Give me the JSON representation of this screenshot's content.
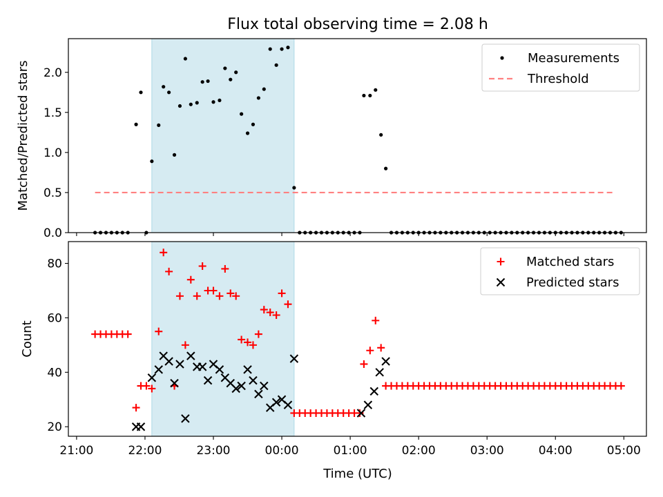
{
  "chart_data": {
    "type": "scatter",
    "title": "Flux total observing time = 2.08 h",
    "xlabel": "Time (UTC)",
    "x_unit": "hours since 21:00 UTC",
    "xlim": [
      -0.12,
      8.33
    ],
    "x_ticks": [
      {
        "value": 0,
        "label": "21:00"
      },
      {
        "value": 1,
        "label": "22:00"
      },
      {
        "value": 2,
        "label": "23:00"
      },
      {
        "value": 3,
        "label": "00:00"
      },
      {
        "value": 4,
        "label": "01:00"
      },
      {
        "value": 5,
        "label": "02:00"
      },
      {
        "value": 6,
        "label": "03:00"
      },
      {
        "value": 7,
        "label": "04:00"
      },
      {
        "value": 8,
        "label": "05:00"
      }
    ],
    "observing_window": {
      "start": 1.1,
      "end": 3.18,
      "color": "#add8e6"
    },
    "panels": [
      {
        "id": "ratio",
        "ylabel": "Matched/Predicted stars",
        "ylim": [
          0,
          2.42
        ],
        "y_ticks": [
          {
            "value": 0,
            "label": "0.0"
          },
          {
            "value": 0.5,
            "label": "0.5"
          },
          {
            "value": 1.0,
            "label": "1.0"
          },
          {
            "value": 1.5,
            "label": "1.5"
          },
          {
            "value": 2.0,
            "label": "2.0"
          }
        ],
        "legend": [
          "Measurements",
          "Threshold"
        ],
        "series": [
          {
            "name": "Measurements",
            "marker": "dot",
            "color": "#000000",
            "points": [
              [
                0.27,
                0
              ],
              [
                0.35,
                0
              ],
              [
                0.43,
                0
              ],
              [
                0.51,
                0
              ],
              [
                0.59,
                0
              ],
              [
                0.67,
                0
              ],
              [
                0.75,
                0
              ],
              [
                0.87,
                1.35
              ],
              [
                0.94,
                1.75
              ],
              [
                1.02,
                0
              ],
              [
                1.1,
                0.89
              ],
              [
                1.2,
                1.34
              ],
              [
                1.27,
                1.82
              ],
              [
                1.35,
                1.75
              ],
              [
                1.43,
                0.97
              ],
              [
                1.51,
                1.58
              ],
              [
                1.59,
                2.17
              ],
              [
                1.67,
                1.6
              ],
              [
                1.76,
                1.62
              ],
              [
                1.84,
                1.88
              ],
              [
                1.92,
                1.89
              ],
              [
                2.0,
                1.63
              ],
              [
                2.09,
                1.65
              ],
              [
                2.17,
                2.05
              ],
              [
                2.25,
                1.91
              ],
              [
                2.33,
                2.0
              ],
              [
                2.41,
                1.48
              ],
              [
                2.5,
                1.24
              ],
              [
                2.58,
                1.35
              ],
              [
                2.66,
                1.68
              ],
              [
                2.74,
                1.79
              ],
              [
                2.83,
                2.29
              ],
              [
                2.92,
                2.09
              ],
              [
                3.0,
                2.29
              ],
              [
                3.09,
                2.31
              ],
              [
                3.18,
                0.56
              ],
              [
                3.26,
                0
              ],
              [
                3.34,
                0
              ],
              [
                3.42,
                0
              ],
              [
                3.5,
                0
              ],
              [
                3.58,
                0
              ],
              [
                3.66,
                0
              ],
              [
                3.74,
                0
              ],
              [
                3.82,
                0
              ],
              [
                3.9,
                0
              ],
              [
                3.98,
                0
              ],
              [
                4.06,
                0
              ],
              [
                4.14,
                0
              ],
              [
                4.2,
                1.71
              ],
              [
                4.29,
                1.71
              ],
              [
                4.37,
                1.78
              ],
              [
                4.45,
                1.22
              ],
              [
                4.52,
                0.8
              ],
              [
                4.6,
                0
              ],
              [
                4.68,
                0
              ],
              [
                4.76,
                0
              ],
              [
                4.84,
                0
              ],
              [
                4.92,
                0
              ],
              [
                5.0,
                0
              ],
              [
                5.08,
                0
              ],
              [
                5.16,
                0
              ],
              [
                5.24,
                0
              ],
              [
                5.32,
                0
              ],
              [
                5.4,
                0
              ],
              [
                5.48,
                0
              ],
              [
                5.56,
                0
              ],
              [
                5.64,
                0
              ],
              [
                5.72,
                0
              ],
              [
                5.8,
                0
              ],
              [
                5.88,
                0
              ],
              [
                5.96,
                0
              ],
              [
                6.04,
                0
              ],
              [
                6.12,
                0
              ],
              [
                6.2,
                0
              ],
              [
                6.28,
                0
              ],
              [
                6.36,
                0
              ],
              [
                6.44,
                0
              ],
              [
                6.52,
                0
              ],
              [
                6.6,
                0
              ],
              [
                6.68,
                0
              ],
              [
                6.76,
                0
              ],
              [
                6.84,
                0
              ],
              [
                6.92,
                0
              ],
              [
                7.0,
                0
              ],
              [
                7.08,
                0
              ],
              [
                7.16,
                0
              ],
              [
                7.24,
                0
              ],
              [
                7.32,
                0
              ],
              [
                7.4,
                0
              ],
              [
                7.48,
                0
              ],
              [
                7.56,
                0
              ],
              [
                7.64,
                0
              ],
              [
                7.72,
                0
              ],
              [
                7.8,
                0
              ],
              [
                7.88,
                0
              ],
              [
                7.96,
                0
              ]
            ]
          },
          {
            "name": "Threshold",
            "marker": "dashed-line",
            "color": "#ff8080",
            "points": [
              [
                0.27,
                0.5
              ],
              [
                7.87,
                0.5
              ]
            ]
          }
        ]
      },
      {
        "id": "counts",
        "ylabel": "Count",
        "ylim": [
          16.5,
          88
        ],
        "y_ticks": [
          {
            "value": 20,
            "label": "20"
          },
          {
            "value": 40,
            "label": "40"
          },
          {
            "value": 60,
            "label": "60"
          },
          {
            "value": 80,
            "label": "80"
          }
        ],
        "legend": [
          "Matched stars",
          "Predicted stars"
        ],
        "series": [
          {
            "name": "Matched stars",
            "marker": "plus",
            "color": "#ff0000",
            "points": [
              [
                0.27,
                54
              ],
              [
                0.35,
                54
              ],
              [
                0.43,
                54
              ],
              [
                0.51,
                54
              ],
              [
                0.59,
                54
              ],
              [
                0.67,
                54
              ],
              [
                0.75,
                54
              ],
              [
                0.87,
                27
              ],
              [
                0.94,
                35
              ],
              [
                1.02,
                35
              ],
              [
                1.1,
                34
              ],
              [
                1.2,
                55
              ],
              [
                1.27,
                84
              ],
              [
                1.35,
                77
              ],
              [
                1.43,
                35
              ],
              [
                1.51,
                68
              ],
              [
                1.59,
                50
              ],
              [
                1.67,
                74
              ],
              [
                1.76,
                68
              ],
              [
                1.84,
                79
              ],
              [
                1.92,
                70
              ],
              [
                2.0,
                70
              ],
              [
                2.09,
                68
              ],
              [
                2.17,
                78
              ],
              [
                2.25,
                69
              ],
              [
                2.33,
                68
              ],
              [
                2.41,
                52
              ],
              [
                2.5,
                51
              ],
              [
                2.58,
                50
              ],
              [
                2.66,
                54
              ],
              [
                2.74,
                63
              ],
              [
                2.83,
                62
              ],
              [
                2.92,
                61
              ],
              [
                3.0,
                69
              ],
              [
                3.09,
                65
              ],
              [
                3.18,
                25
              ],
              [
                3.26,
                25
              ],
              [
                3.34,
                25
              ],
              [
                3.42,
                25
              ],
              [
                3.5,
                25
              ],
              [
                3.58,
                25
              ],
              [
                3.66,
                25
              ],
              [
                3.74,
                25
              ],
              [
                3.82,
                25
              ],
              [
                3.9,
                25
              ],
              [
                3.98,
                25
              ],
              [
                4.06,
                25
              ],
              [
                4.14,
                25
              ],
              [
                4.2,
                43
              ],
              [
                4.29,
                48
              ],
              [
                4.37,
                59
              ],
              [
                4.45,
                49
              ],
              [
                4.52,
                35
              ],
              [
                4.6,
                35
              ],
              [
                4.68,
                35
              ],
              [
                4.76,
                35
              ],
              [
                4.84,
                35
              ],
              [
                4.92,
                35
              ],
              [
                5.0,
                35
              ],
              [
                5.08,
                35
              ],
              [
                5.16,
                35
              ],
              [
                5.24,
                35
              ],
              [
                5.32,
                35
              ],
              [
                5.4,
                35
              ],
              [
                5.48,
                35
              ],
              [
                5.56,
                35
              ],
              [
                5.64,
                35
              ],
              [
                5.72,
                35
              ],
              [
                5.8,
                35
              ],
              [
                5.88,
                35
              ],
              [
                5.96,
                35
              ],
              [
                6.04,
                35
              ],
              [
                6.12,
                35
              ],
              [
                6.2,
                35
              ],
              [
                6.28,
                35
              ],
              [
                6.36,
                35
              ],
              [
                6.44,
                35
              ],
              [
                6.52,
                35
              ],
              [
                6.6,
                35
              ],
              [
                6.68,
                35
              ],
              [
                6.76,
                35
              ],
              [
                6.84,
                35
              ],
              [
                6.92,
                35
              ],
              [
                7.0,
                35
              ],
              [
                7.08,
                35
              ],
              [
                7.16,
                35
              ],
              [
                7.24,
                35
              ],
              [
                7.32,
                35
              ],
              [
                7.4,
                35
              ],
              [
                7.48,
                35
              ],
              [
                7.56,
                35
              ],
              [
                7.64,
                35
              ],
              [
                7.72,
                35
              ],
              [
                7.8,
                35
              ],
              [
                7.88,
                35
              ],
              [
                7.96,
                35
              ]
            ]
          },
          {
            "name": "Predicted stars",
            "marker": "x",
            "color": "#000000",
            "points": [
              [
                0.87,
                20
              ],
              [
                0.94,
                20
              ],
              [
                1.1,
                38
              ],
              [
                1.2,
                41
              ],
              [
                1.27,
                46
              ],
              [
                1.35,
                44
              ],
              [
                1.43,
                36
              ],
              [
                1.51,
                43
              ],
              [
                1.59,
                23
              ],
              [
                1.67,
                46
              ],
              [
                1.76,
                42
              ],
              [
                1.84,
                42
              ],
              [
                1.92,
                37
              ],
              [
                2.0,
                43
              ],
              [
                2.09,
                41
              ],
              [
                2.17,
                38
              ],
              [
                2.25,
                36
              ],
              [
                2.33,
                34
              ],
              [
                2.41,
                35
              ],
              [
                2.5,
                41
              ],
              [
                2.58,
                37
              ],
              [
                2.66,
                32
              ],
              [
                2.74,
                35
              ],
              [
                2.83,
                27
              ],
              [
                2.92,
                29
              ],
              [
                3.0,
                30
              ],
              [
                3.09,
                28
              ],
              [
                3.18,
                45
              ],
              [
                4.16,
                25
              ],
              [
                4.26,
                28
              ],
              [
                4.35,
                33
              ],
              [
                4.43,
                40
              ],
              [
                4.52,
                44
              ]
            ]
          }
        ]
      }
    ]
  }
}
